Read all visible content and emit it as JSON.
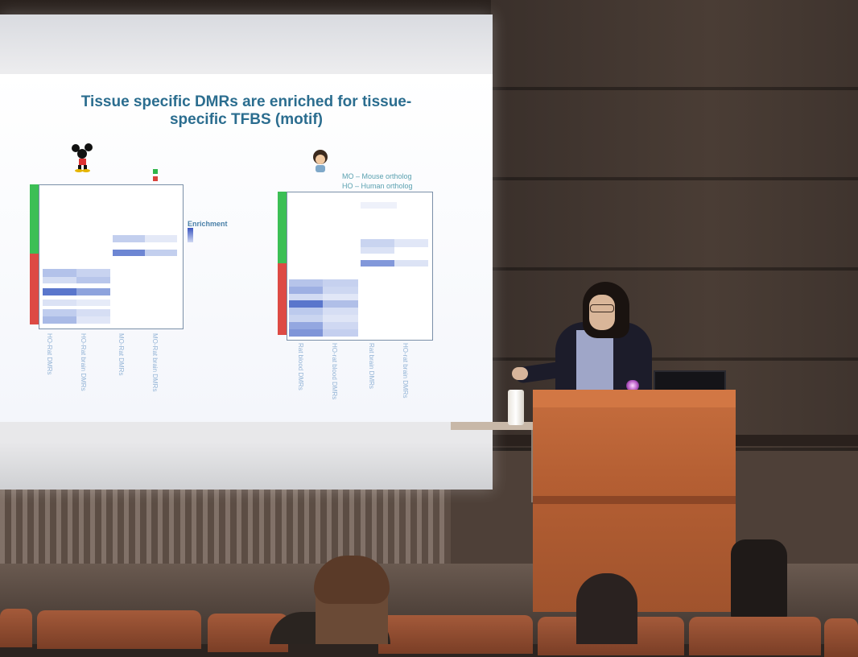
{
  "slide": {
    "title_line1": "Tissue specific DMRs are enriched for tissue-",
    "title_line2": "specific TFBS (motif)",
    "legend_ortho_mouse": "MO – Mouse ortholog",
    "legend_ortho_human": "HO – Human ortholog",
    "enrichment_label": "Enrichment",
    "left_xlabels": [
      "HO-Rat DMRs",
      "HO-Rat brain DMRs",
      "MO-Rat DMRs",
      "MO-Rat brain DMRs"
    ],
    "right_xlabels": [
      "Rat blood DMRs",
      "HO-rat blood DMRs",
      "Rat brain DMRs",
      "HO-rat brain DMRs"
    ]
  },
  "colors": {
    "title": "#2b6d8f",
    "group_green": "#3cbf55",
    "group_red": "#dd4a44",
    "heat_strong": "#3a55c0",
    "heat_light": "#cfd8f2",
    "podium": "#b55f33"
  },
  "icons": {
    "left_heatmap": "mouse-cartoon-icon",
    "right_heatmap": "human-cartoon-icon"
  }
}
